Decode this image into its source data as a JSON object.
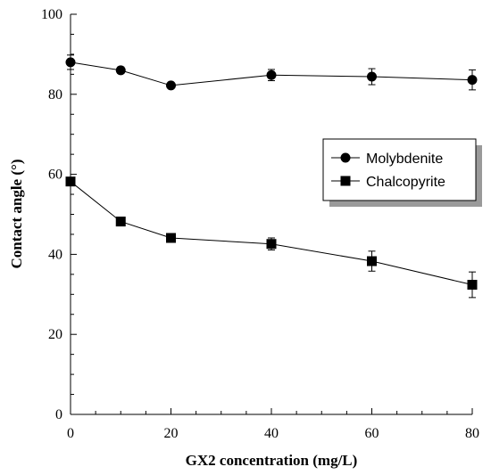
{
  "chart_data": {
    "type": "line",
    "xlabel": "GX2 concentration (mg/L)",
    "ylabel": "Contact angle (°)",
    "xlim": [
      0,
      80
    ],
    "ylim": [
      0,
      100
    ],
    "x_ticks": [
      0,
      20,
      40,
      60,
      80
    ],
    "y_ticks": [
      0,
      20,
      40,
      60,
      80,
      100
    ],
    "x": [
      0,
      10,
      20,
      40,
      60,
      80
    ],
    "grid": false,
    "legend_position": "right",
    "series": [
      {
        "name": "Molybdenite",
        "marker": "circle",
        "values": [
          88.0,
          86.0,
          82.2,
          84.8,
          84.4,
          83.6
        ],
        "errors": [
          1.8,
          0.8,
          0.6,
          1.4,
          2.0,
          2.5
        ]
      },
      {
        "name": "Chalcopyrite",
        "marker": "square",
        "values": [
          58.2,
          48.2,
          44.1,
          42.6,
          38.3,
          32.4
        ],
        "errors": [
          0.5,
          0.5,
          0.5,
          1.5,
          2.5,
          3.2
        ]
      }
    ]
  }
}
